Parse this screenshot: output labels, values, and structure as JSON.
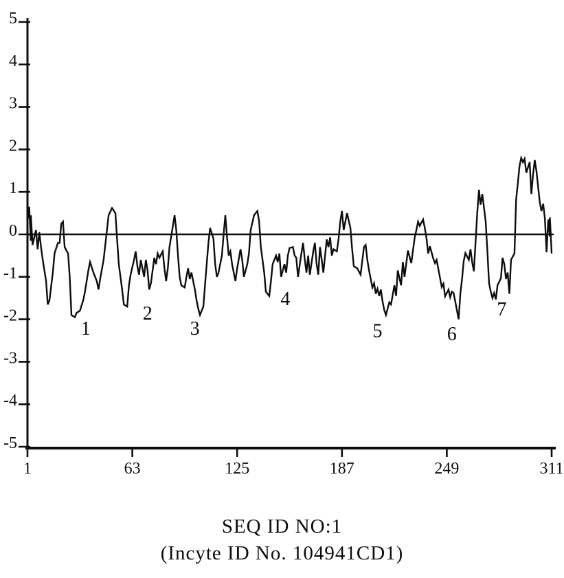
{
  "figure": {
    "title_line1": "SEQ ID NO:1",
    "title_line2": "(Incyte ID No. 104941CD1)"
  },
  "chart_data": {
    "type": "line",
    "title": "SEQ ID NO:1",
    "subtitle": "(Incyte ID No. 104941CD1)",
    "xlabel": "",
    "ylabel": "",
    "xlim": [
      1,
      311
    ],
    "ylim": [
      -5,
      5
    ],
    "x_ticks": [
      1,
      63,
      125,
      187,
      249,
      311
    ],
    "y_ticks": [
      5,
      4,
      3,
      2,
      1,
      0,
      -1,
      -2,
      -3,
      -4,
      -5
    ],
    "grid": false,
    "zero_line": true,
    "line_color": "#0d0d0d",
    "axis_color": "#0d0d0d",
    "legend": "none",
    "series": [
      {
        "name": "hydropathy",
        "points": [
          [
            1,
            0.3
          ],
          [
            2,
            0.65
          ],
          [
            3,
            -0.15
          ],
          [
            3,
            0.45
          ],
          [
            4,
            -0.25
          ],
          [
            6,
            0.1
          ],
          [
            7,
            -0.35
          ],
          [
            8,
            0.05
          ],
          [
            9,
            -0.3
          ],
          [
            10,
            -0.6
          ],
          [
            12,
            -1.1
          ],
          [
            13,
            -1.65
          ],
          [
            14,
            -1.55
          ],
          [
            16,
            -0.9
          ],
          [
            17,
            -0.45
          ],
          [
            19,
            -0.2
          ],
          [
            20,
            -0.2
          ],
          [
            21,
            0.25
          ],
          [
            22,
            0.3
          ],
          [
            23,
            -0.3
          ],
          [
            25,
            -0.45
          ],
          [
            26,
            -1.0
          ],
          [
            27,
            -1.9
          ],
          [
            29,
            -1.95
          ],
          [
            30,
            -1.85
          ],
          [
            32,
            -1.8
          ],
          [
            34,
            -1.55
          ],
          [
            35,
            -1.35
          ],
          [
            37,
            -0.85
          ],
          [
            38,
            -0.65
          ],
          [
            40,
            -0.9
          ],
          [
            42,
            -1.1
          ],
          [
            43,
            -1.3
          ],
          [
            44,
            -1.05
          ],
          [
            46,
            -0.6
          ],
          [
            48,
            0.1
          ],
          [
            49,
            0.45
          ],
          [
            51,
            0.62
          ],
          [
            53,
            0.5
          ],
          [
            54,
            -0.1
          ],
          [
            55,
            -0.7
          ],
          [
            57,
            -1.3
          ],
          [
            58,
            -1.65
          ],
          [
            60,
            -1.7
          ],
          [
            61,
            -1.2
          ],
          [
            62,
            -0.95
          ],
          [
            64,
            -0.6
          ],
          [
            65,
            -0.4
          ],
          [
            66,
            -0.75
          ],
          [
            67,
            -0.95
          ],
          [
            68,
            -0.6
          ],
          [
            70,
            -1.0
          ],
          [
            71,
            -0.6
          ],
          [
            72,
            -0.85
          ],
          [
            73,
            -1.3
          ],
          [
            74,
            -1.15
          ],
          [
            76,
            -0.55
          ],
          [
            77,
            -0.7
          ],
          [
            78,
            -0.45
          ],
          [
            79,
            -0.55
          ],
          [
            81,
            -0.4
          ],
          [
            82,
            -0.8
          ],
          [
            83,
            -1.1
          ],
          [
            84,
            -0.8
          ],
          [
            85,
            -0.3
          ],
          [
            87,
            0.2
          ],
          [
            88,
            0.45
          ],
          [
            89,
            0.1
          ],
          [
            90,
            -0.5
          ],
          [
            91,
            -1.0
          ],
          [
            92,
            -1.2
          ],
          [
            94,
            -1.25
          ],
          [
            95,
            -1.0
          ],
          [
            96,
            -0.8
          ],
          [
            97,
            -1.05
          ],
          [
            98,
            -0.9
          ],
          [
            100,
            -1.3
          ],
          [
            101,
            -1.55
          ],
          [
            102,
            -1.75
          ],
          [
            103,
            -1.9
          ],
          [
            105,
            -1.7
          ],
          [
            106,
            -1.2
          ],
          [
            107,
            -0.7
          ],
          [
            108,
            -0.2
          ],
          [
            109,
            0.15
          ],
          [
            111,
            -0.1
          ],
          [
            112,
            -0.7
          ],
          [
            113,
            -1.0
          ],
          [
            114,
            -0.9
          ],
          [
            116,
            -0.5
          ],
          [
            117,
            0.0
          ],
          [
            118,
            0.45
          ],
          [
            119,
            -0.05
          ],
          [
            120,
            -0.5
          ],
          [
            121,
            -0.4
          ],
          [
            122,
            -0.7
          ],
          [
            124,
            -1.1
          ],
          [
            125,
            -0.8
          ],
          [
            127,
            -0.35
          ],
          [
            128,
            -0.6
          ],
          [
            129,
            -1.0
          ],
          [
            131,
            -0.7
          ],
          [
            132,
            -0.45
          ],
          [
            133,
            0.1
          ],
          [
            135,
            0.45
          ],
          [
            137,
            0.55
          ],
          [
            138,
            0.3
          ],
          [
            139,
            -0.3
          ],
          [
            141,
            -0.9
          ],
          [
            142,
            -1.35
          ],
          [
            144,
            -1.45
          ],
          [
            145,
            -1.1
          ],
          [
            146,
            -0.7
          ],
          [
            148,
            -0.5
          ],
          [
            149,
            -0.65
          ],
          [
            150,
            -0.45
          ],
          [
            151,
            -1.0
          ],
          [
            153,
            -0.7
          ],
          [
            154,
            -0.9
          ],
          [
            155,
            -0.5
          ],
          [
            156,
            -0.32
          ],
          [
            158,
            -0.3
          ],
          [
            159,
            -0.5
          ],
          [
            160,
            -0.55
          ],
          [
            161,
            -1.0
          ],
          [
            163,
            -0.45
          ],
          [
            164,
            -0.2
          ],
          [
            165,
            -0.6
          ],
          [
            166,
            -0.9
          ],
          [
            167,
            -0.5
          ],
          [
            168,
            -0.95
          ],
          [
            170,
            -0.4
          ],
          [
            171,
            -0.2
          ],
          [
            172,
            -0.7
          ],
          [
            173,
            -0.95
          ],
          [
            174,
            -0.3
          ],
          [
            176,
            -0.9
          ],
          [
            177,
            -0.5
          ],
          [
            178,
            -0.12
          ],
          [
            179,
            -0.3
          ],
          [
            180,
            -0.07
          ],
          [
            181,
            -0.5
          ],
          [
            182,
            -0.35
          ],
          [
            184,
            -0.4
          ],
          [
            185,
            -0.1
          ],
          [
            186,
            0.3
          ],
          [
            187,
            0.55
          ],
          [
            188,
            0.1
          ],
          [
            189,
            0.3
          ],
          [
            190,
            0.5
          ],
          [
            192,
            0.15
          ],
          [
            193,
            -0.35
          ],
          [
            194,
            -0.75
          ],
          [
            196,
            -0.8
          ],
          [
            198,
            -0.95
          ],
          [
            200,
            -0.3
          ],
          [
            201,
            -0.25
          ],
          [
            202,
            -0.6
          ],
          [
            203,
            -0.85
          ],
          [
            205,
            -1.25
          ],
          [
            206,
            -1.15
          ],
          [
            207,
            -1.4
          ],
          [
            208,
            -1.28
          ],
          [
            209,
            -1.45
          ],
          [
            210,
            -1.3
          ],
          [
            211,
            -1.58
          ],
          [
            212,
            -1.78
          ],
          [
            213,
            -1.9
          ],
          [
            215,
            -1.6
          ],
          [
            216,
            -1.65
          ],
          [
            218,
            -1.2
          ],
          [
            219,
            -1.45
          ],
          [
            220,
            -0.85
          ],
          [
            222,
            -1.2
          ],
          [
            223,
            -0.65
          ],
          [
            224,
            -1.0
          ],
          [
            226,
            -0.38
          ],
          [
            228,
            -0.68
          ],
          [
            230,
            -0.08
          ],
          [
            231,
            0.1
          ],
          [
            232,
            0.3
          ],
          [
            233,
            0.2
          ],
          [
            235,
            0.35
          ],
          [
            236,
            0.15
          ],
          [
            237,
            -0.1
          ],
          [
            238,
            -0.45
          ],
          [
            239,
            -0.28
          ],
          [
            241,
            -0.57
          ],
          [
            242,
            -0.68
          ],
          [
            243,
            -0.6
          ],
          [
            245,
            -1.03
          ],
          [
            246,
            -1.24
          ],
          [
            247,
            -1.16
          ],
          [
            248,
            -1.46
          ],
          [
            250,
            -1.3
          ],
          [
            251,
            -1.48
          ],
          [
            252,
            -1.35
          ],
          [
            253,
            -1.38
          ],
          [
            254,
            -1.58
          ],
          [
            256,
            -2.0
          ],
          [
            257,
            -1.4
          ],
          [
            258,
            -1.05
          ],
          [
            259,
            -0.63
          ],
          [
            260,
            -0.44
          ],
          [
            262,
            -0.6
          ],
          [
            263,
            -0.35
          ],
          [
            264,
            -0.65
          ],
          [
            265,
            -0.87
          ],
          [
            266,
            -0.2
          ],
          [
            267,
            0.5
          ],
          [
            268,
            1.05
          ],
          [
            269,
            0.7
          ],
          [
            270,
            0.95
          ],
          [
            272,
            0.3
          ],
          [
            273,
            -0.4
          ],
          [
            274,
            -1.15
          ],
          [
            275,
            -1.35
          ],
          [
            276,
            -1.5
          ],
          [
            277,
            -1.38
          ],
          [
            278,
            -1.53
          ],
          [
            279,
            -1.2
          ],
          [
            281,
            -1.03
          ],
          [
            282,
            -0.55
          ],
          [
            283,
            -0.7
          ],
          [
            284,
            -1.05
          ],
          [
            285,
            -0.9
          ],
          [
            286,
            -1.4
          ],
          [
            287,
            -0.6
          ],
          [
            289,
            -0.45
          ],
          [
            290,
            0.82
          ],
          [
            291,
            1.2
          ],
          [
            292,
            1.6
          ],
          [
            293,
            1.8
          ],
          [
            294,
            1.7
          ],
          [
            295,
            1.78
          ],
          [
            296,
            1.45
          ],
          [
            298,
            1.7
          ],
          [
            299,
            0.95
          ],
          [
            300,
            1.4
          ],
          [
            301,
            1.75
          ],
          [
            302,
            1.5
          ],
          [
            304,
            0.75
          ],
          [
            305,
            0.55
          ],
          [
            306,
            0.72
          ],
          [
            307,
            0.37
          ],
          [
            308,
            -0.42
          ],
          [
            309,
            0.35
          ],
          [
            310,
            -0.05
          ],
          [
            310,
            0.4
          ],
          [
            311,
            -0.45
          ]
        ]
      }
    ],
    "region_labels": [
      {
        "text": "1",
        "x": 35.5,
        "y": -2.22
      },
      {
        "text": "2",
        "x": 72.0,
        "y": -1.86
      },
      {
        "text": "3",
        "x": 100.0,
        "y": -2.22
      },
      {
        "text": "4",
        "x": 153.5,
        "y": -1.52
      },
      {
        "text": "5",
        "x": 208.0,
        "y": -2.27
      },
      {
        "text": "6",
        "x": 252.0,
        "y": -2.35
      },
      {
        "text": "7",
        "x": 281.5,
        "y": -1.76
      }
    ]
  }
}
